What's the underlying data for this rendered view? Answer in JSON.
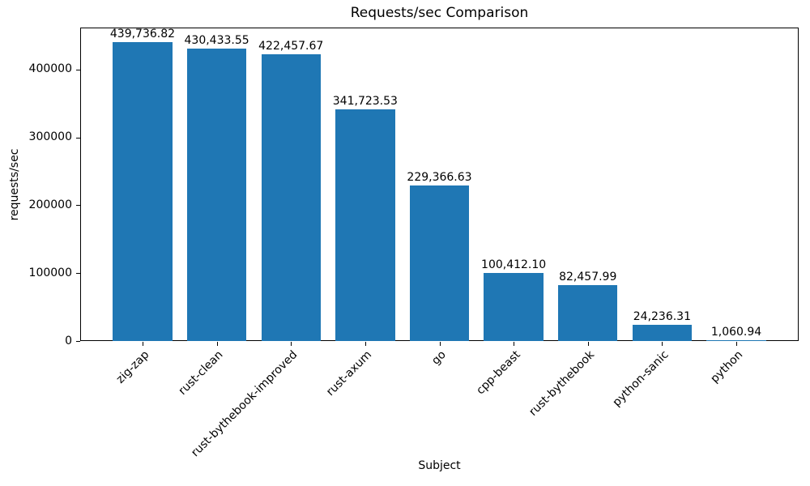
{
  "chart_data": {
    "type": "bar",
    "title": "Requests/sec Comparison",
    "xlabel": "Subject",
    "ylabel": "requests/sec",
    "categories": [
      "zig-zap",
      "rust-clean",
      "rust-bythebook-improved",
      "rust-axum",
      "go",
      "cpp-beast",
      "rust-bythebook",
      "python-sanic",
      "python"
    ],
    "values": [
      439736.82,
      430433.55,
      422457.67,
      341723.53,
      229366.63,
      100412.1,
      82457.99,
      24236.31,
      1060.94
    ],
    "value_labels": [
      "439,736.82",
      "430,433.55",
      "422,457.67",
      "341,723.53",
      "229,366.63",
      "100,412.10",
      "82,457.99",
      "24,236.31",
      "1,060.94"
    ],
    "yticks": [
      0,
      100000,
      200000,
      300000,
      400000
    ],
    "ytick_labels": [
      "0",
      "100000",
      "200000",
      "300000",
      "400000"
    ],
    "ylim": [
      0,
      461724
    ],
    "bar_color": "#1f77b4",
    "bar_width_fraction": 0.8,
    "xtick_rotation": 45,
    "grid": false,
    "legend": null
  }
}
